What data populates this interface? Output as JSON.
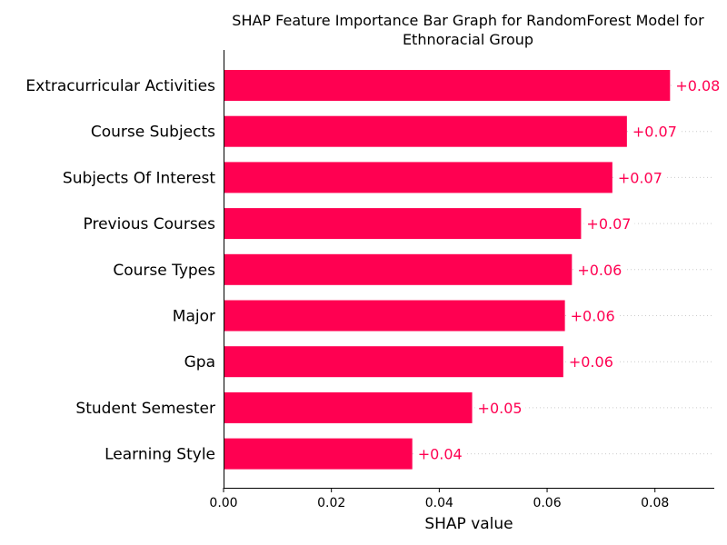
{
  "chart_data": {
    "type": "bar",
    "orientation": "horizontal",
    "title_lines": [
      "SHAP Feature Importance Bar Graph for RandomForest Model for",
      "Ethnoracial Group"
    ],
    "xlabel": "SHAP value",
    "ylabel": "",
    "xlim": [
      0,
      0.091
    ],
    "xticks": [
      "0.00",
      "0.02",
      "0.04",
      "0.06",
      "0.08"
    ],
    "xtick_values": [
      0.0,
      0.02,
      0.04,
      0.06,
      0.08
    ],
    "categories": [
      "Extracurricular Activities",
      "Course Subjects",
      "Subjects Of Interest",
      "Previous Courses",
      "Course Types",
      "Major",
      "Gpa",
      "Student Semester",
      "Learning Style"
    ],
    "values": [
      0.0828,
      0.0748,
      0.0721,
      0.0663,
      0.0646,
      0.0633,
      0.063,
      0.0461,
      0.035
    ],
    "value_labels": [
      "+0.08",
      "+0.07",
      "+0.07",
      "+0.07",
      "+0.06",
      "+0.06",
      "+0.06",
      "+0.05",
      "+0.04"
    ],
    "bar_color": "#ff0051",
    "label_color": "#ff0051",
    "grid": "dotted guide lines after bars"
  }
}
